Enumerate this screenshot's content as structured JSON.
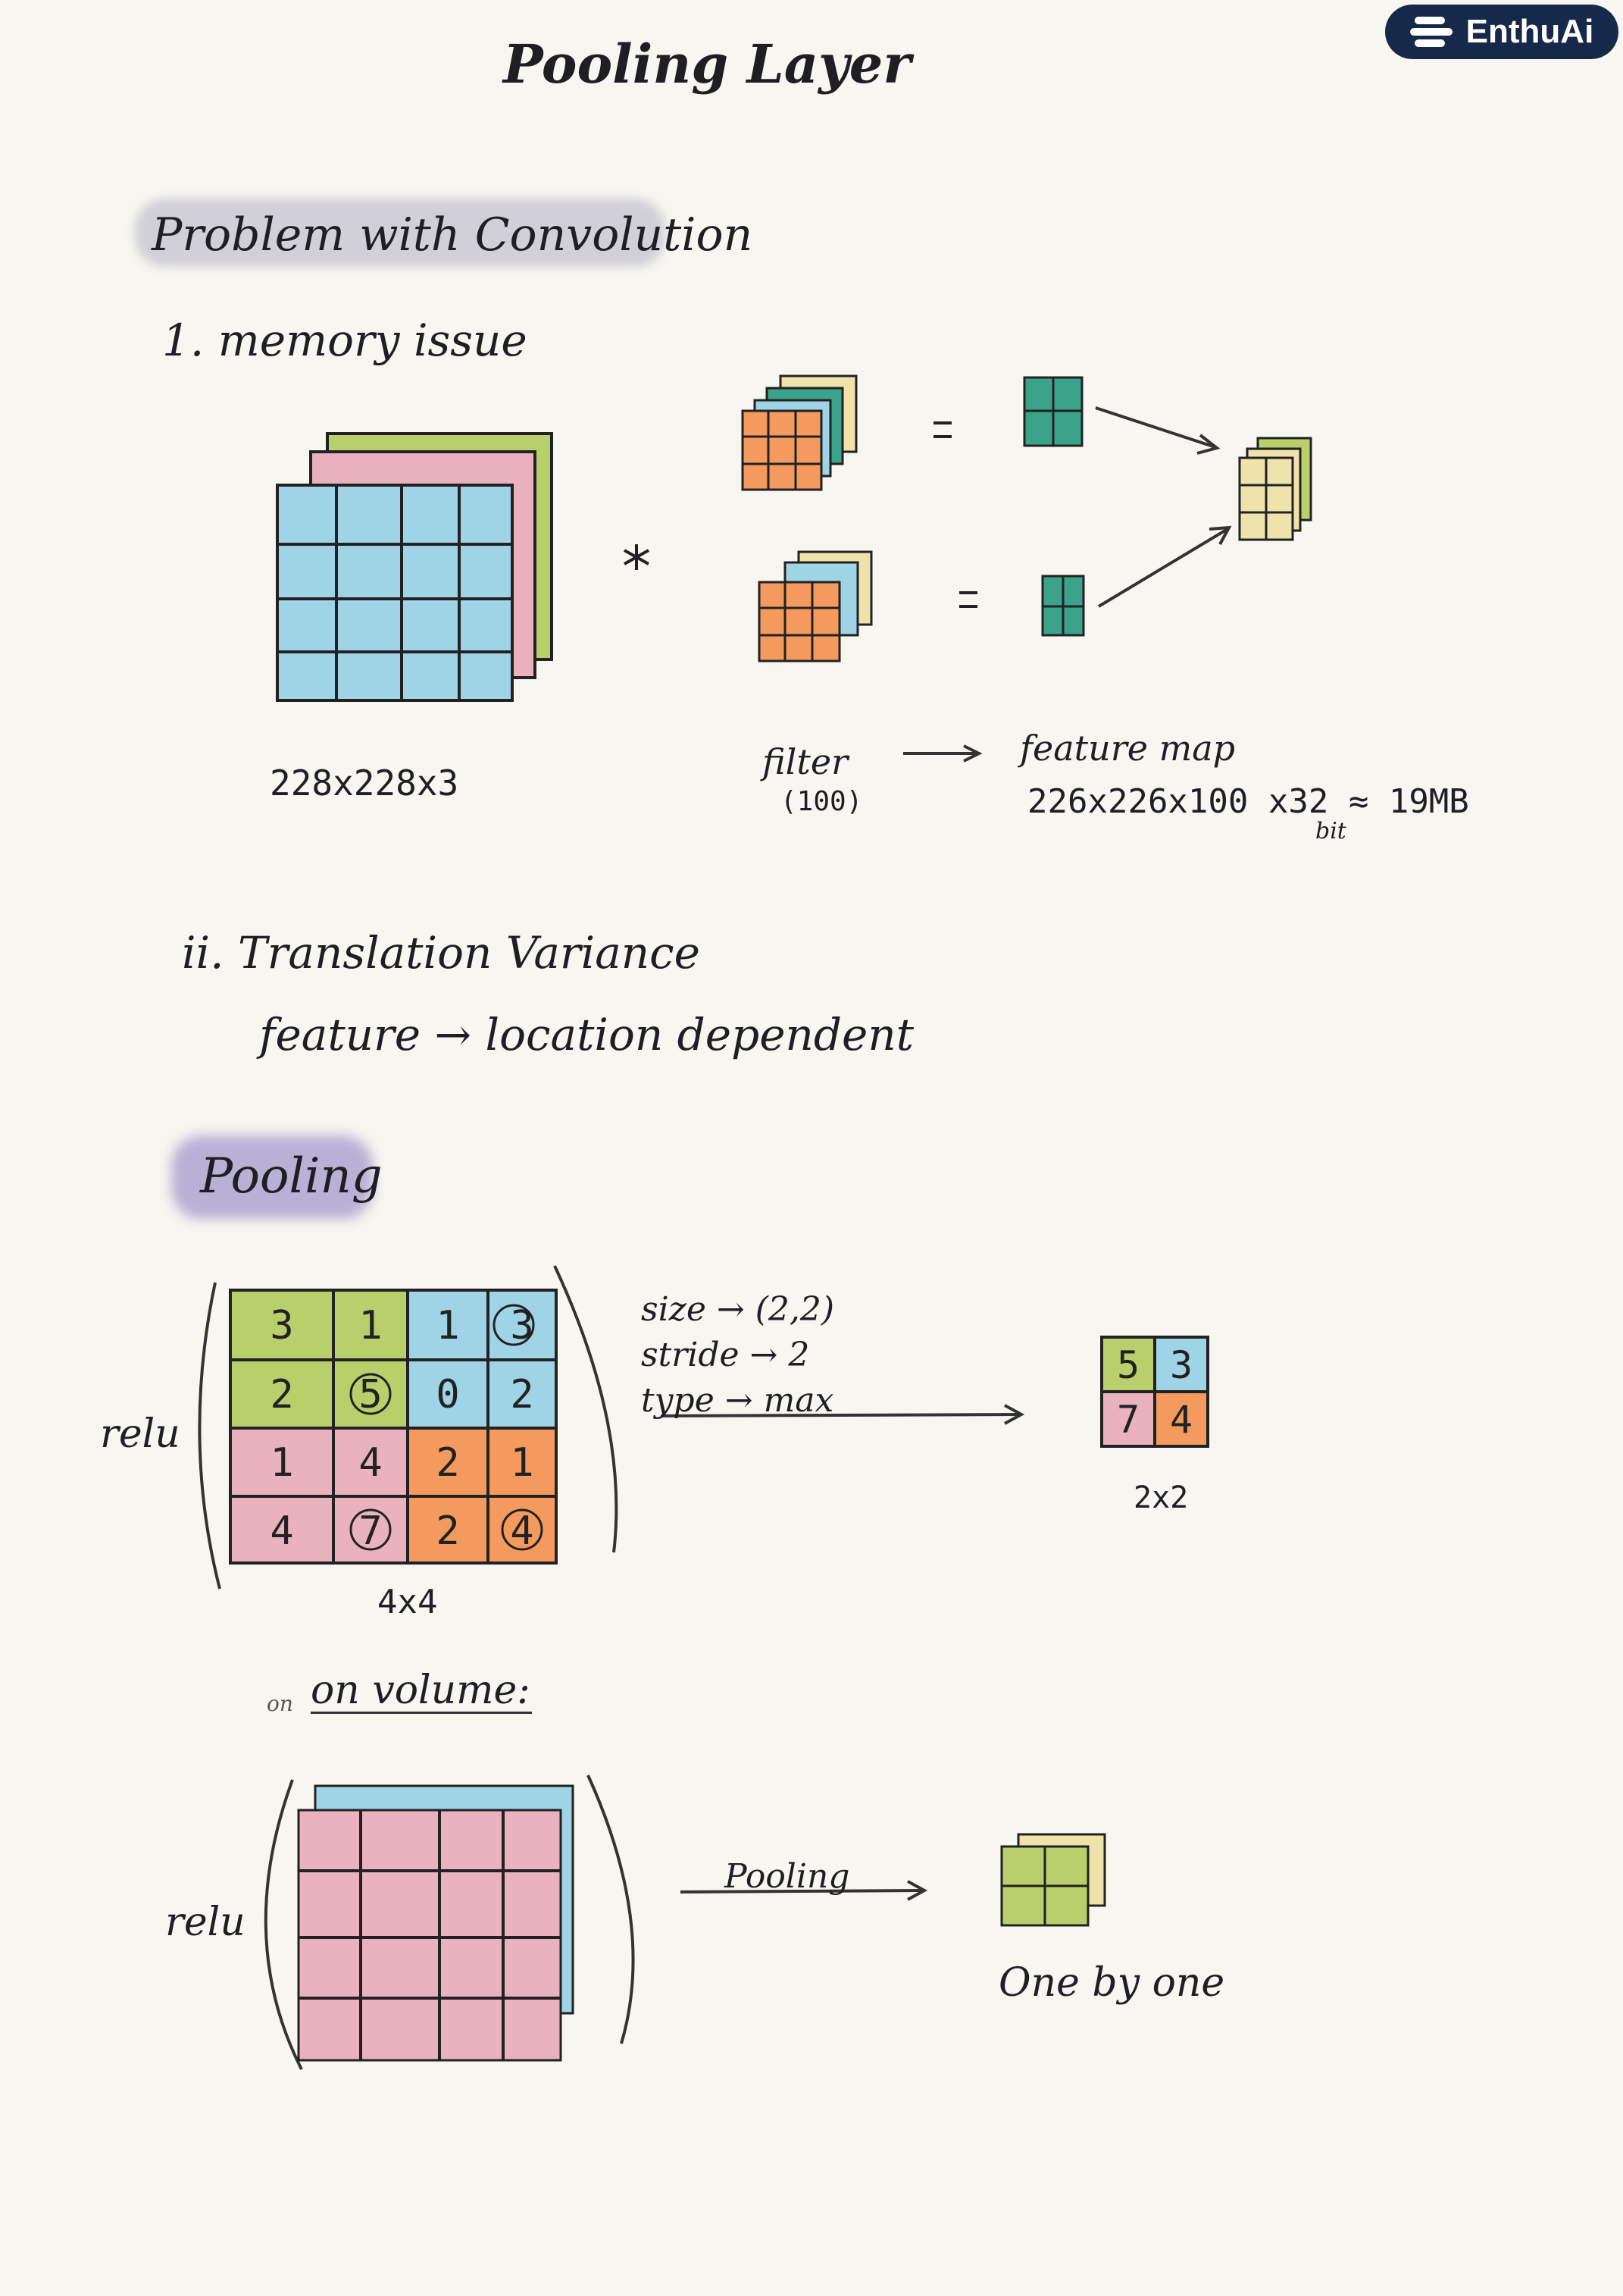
{
  "brand": {
    "name": "EnthuAi",
    "icon": "stacked-bars-logo-icon"
  },
  "title": "Pooling Layer",
  "problem_heading": "Problem with Convolution",
  "memory": {
    "label": "1. memory issue",
    "input_dims": "228x228x3",
    "filter_label": "filter",
    "filter_count": "(100)",
    "feature_map_label": "feature map",
    "calculation": "226x226x100 x32 ≈ 19MB",
    "bit_note": "bit"
  },
  "translation": {
    "label": "ii. Translation Variance",
    "description": "feature → location dependent"
  },
  "pooling": {
    "heading": "Pooling",
    "activation_label": "relu",
    "input_grid": [
      [
        "3",
        "1",
        "1",
        "3"
      ],
      [
        "2",
        "5",
        "0",
        "2"
      ],
      [
        "1",
        "4",
        "2",
        "1"
      ],
      [
        "4",
        "7",
        "2",
        "4"
      ]
    ],
    "input_dims": "4x4",
    "params": {
      "size": "size → (2,2)",
      "stride": "stride → 2",
      "type": "type → max"
    },
    "output_grid": [
      [
        "5",
        "3"
      ],
      [
        "7",
        "4"
      ]
    ],
    "output_dims": "2x2"
  },
  "volume": {
    "label": "on volume:",
    "strike_note": "on",
    "activation_label": "relu",
    "arrow_label": "Pooling",
    "result_label": "One by one"
  },
  "colors": {
    "blue": "#9fd3e6",
    "green": "#b9cf6b",
    "pink": "#eab2bf",
    "orange": "#f49a5e",
    "teal": "#3aa38a",
    "cream": "#efe3ac",
    "ink": "#1f1f23",
    "brand": "#17294a"
  }
}
